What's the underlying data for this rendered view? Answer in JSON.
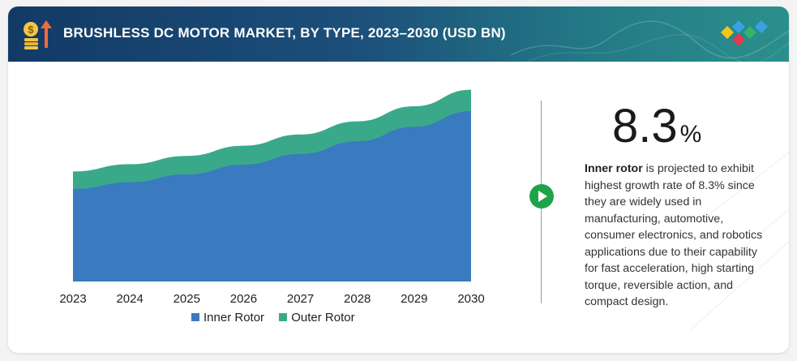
{
  "header": {
    "title": "BRUSHLESS DC MOTOR MARKET, BY TYPE, 2023–2030 (USD BN)",
    "colors": {
      "start": "#123a66",
      "end": "#2b8f8c"
    },
    "icons": [
      "dollar-growth-icon",
      "brand-logo-icon"
    ]
  },
  "chart_data": {
    "type": "area",
    "stacked": true,
    "x": [
      "2023",
      "2024",
      "2025",
      "2026",
      "2027",
      "2028",
      "2029",
      "2030"
    ],
    "series": [
      {
        "name": "Inner Rotor",
        "color": "#3a7abf",
        "values": [
          9.5,
          10.2,
          11.0,
          12.0,
          13.1,
          14.4,
          15.9,
          17.5
        ]
      },
      {
        "name": "Outer Rotor",
        "color": "#3aa98a",
        "values": [
          1.8,
          1.85,
          1.9,
          1.95,
          2.0,
          2.05,
          2.1,
          2.2
        ]
      }
    ],
    "ylim": [
      0,
      20
    ],
    "grid": false,
    "legend": "bottom"
  },
  "legend": {
    "inner": "Inner Rotor",
    "outer": "Outer Rotor"
  },
  "highlight": {
    "value": "8.3",
    "unit": "%",
    "bold_lead": "Inner rotor",
    "text": " is projected to exhibit highest growth rate of 8.3% since they are widely used in manufacturing, automotive, consumer electronics, and robotics applications due to their capability for fast acceleration, high starting torque, reversible action, and compact design.",
    "accent": "#1fa34a"
  }
}
